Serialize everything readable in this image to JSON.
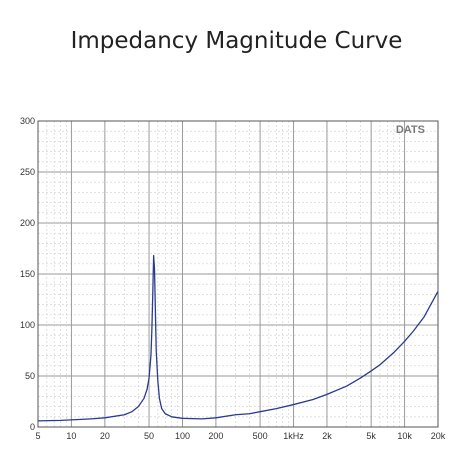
{
  "chart_data": {
    "type": "line",
    "title": "Impedancy Magnitude Curve",
    "watermark": "DATS",
    "x_scale": "log",
    "xlim": [
      5,
      20000
    ],
    "ylim": [
      0,
      300
    ],
    "grid": true,
    "x_ticks": [
      {
        "value": 5,
        "label": "5"
      },
      {
        "value": 10,
        "label": "10"
      },
      {
        "value": 20,
        "label": "20"
      },
      {
        "value": 50,
        "label": "50"
      },
      {
        "value": 100,
        "label": "100"
      },
      {
        "value": 200,
        "label": "200"
      },
      {
        "value": 500,
        "label": "500"
      },
      {
        "value": 1000,
        "label": "1kHz"
      },
      {
        "value": 2000,
        "label": "2k"
      },
      {
        "value": 5000,
        "label": "5k"
      },
      {
        "value": 10000,
        "label": "10k"
      },
      {
        "value": 20000,
        "label": "20k"
      }
    ],
    "y_ticks": [
      {
        "value": 0,
        "label": "0"
      },
      {
        "value": 50,
        "label": "50"
      },
      {
        "value": 100,
        "label": "100"
      },
      {
        "value": 150,
        "label": "150"
      },
      {
        "value": 200,
        "label": "200"
      },
      {
        "value": 250,
        "label": "250"
      },
      {
        "value": 300,
        "label": "300"
      }
    ],
    "colors": {
      "line": "#2b3a8f",
      "grid": "#cfcfcf",
      "axis": "#555555"
    },
    "series": [
      {
        "x": [
          5,
          8,
          10,
          15,
          20,
          30,
          35,
          40,
          45,
          48,
          50,
          52,
          53,
          54,
          55,
          56,
          57,
          58,
          60,
          62,
          65,
          70,
          80,
          100,
          150,
          200,
          300,
          400,
          500,
          700,
          1000,
          1500,
          2000,
          3000,
          4000,
          5000,
          6000,
          8000,
          10000,
          12000,
          15000,
          20000
        ],
        "y": [
          6,
          6.5,
          7,
          8,
          9,
          12,
          15,
          20,
          28,
          37,
          48,
          70,
          95,
          130,
          168,
          155,
          115,
          75,
          45,
          28,
          18,
          13,
          10,
          8.5,
          8,
          9,
          12,
          13,
          15,
          18,
          22,
          27,
          32,
          40,
          48,
          55,
          61,
          73,
          84,
          94,
          108,
          133
        ]
      }
    ]
  }
}
